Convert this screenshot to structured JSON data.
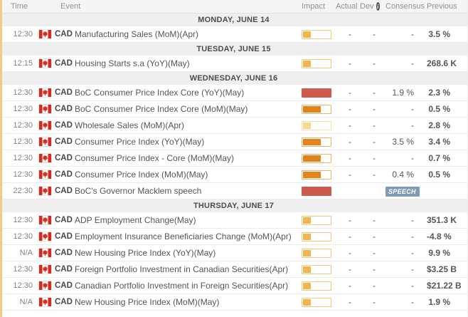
{
  "header": {
    "time": "Time",
    "event": "Event",
    "impact": "Impact",
    "actual": "Actual",
    "dev": "Dev",
    "dev_info_icon": "i",
    "consensus": "Consensus",
    "previous": "Previous"
  },
  "colors": {
    "accent_strip": "#f3cb7d",
    "header_bg": "#f5f5f6",
    "day_header_bg": "#efefef",
    "row_separator": "#ececec",
    "speech_badge_bg": "#7e9cb9",
    "flag_red": "#d52b1e",
    "time_text": "#808289",
    "event_text": "#54565b",
    "previous_text": "#43454a"
  },
  "impact_levels": {
    "low": {
      "fill": "#f2b54d",
      "border": "#f2c87e",
      "percent": 31
    },
    "low_light": {
      "fill": "#f7d88c",
      "border": "#f7e0a8",
      "percent": 31
    },
    "medium": {
      "fill": "#e2831b",
      "border": "#efb269",
      "percent": 64
    },
    "high": {
      "fill": "#cd5a4c",
      "border": "#cd5a4c",
      "percent": 100
    }
  },
  "groups": [
    {
      "day": "MONDAY, JUNE 14",
      "rows": [
        {
          "time": "12:30",
          "currency": "CAD",
          "event": "Manufacturing Sales (MoM)(Apr)",
          "impact": "low",
          "actual": "-",
          "dev": "-",
          "consensus": "-",
          "previous": "3.5 %"
        }
      ]
    },
    {
      "day": "TUESDAY, JUNE 15",
      "rows": [
        {
          "time": "12:15",
          "currency": "CAD",
          "event": "Housing Starts s.a (YoY)(May)",
          "impact": "low",
          "actual": "-",
          "dev": "-",
          "consensus": "-",
          "previous": "268.6 K"
        }
      ]
    },
    {
      "day": "WEDNESDAY, JUNE 16",
      "rows": [
        {
          "time": "12:30",
          "currency": "CAD",
          "event": "BoC Consumer Price Index Core (YoY)(May)",
          "impact": "high",
          "actual": "-",
          "dev": "-",
          "consensus": "1.9 %",
          "previous": "2.3 %"
        },
        {
          "time": "12:30",
          "currency": "CAD",
          "event": "BoC Consumer Price Index Core (MoM)(May)",
          "impact": "medium",
          "actual": "-",
          "dev": "-",
          "consensus": "-",
          "previous": "0.5 %"
        },
        {
          "time": "12:30",
          "currency": "CAD",
          "event": "Wholesale Sales (MoM)(Apr)",
          "impact": "low_light",
          "actual": "-",
          "dev": "-",
          "consensus": "-",
          "previous": "2.8 %"
        },
        {
          "time": "12:30",
          "currency": "CAD",
          "event": "Consumer Price Index (YoY)(May)",
          "impact": "medium",
          "actual": "-",
          "dev": "-",
          "consensus": "3.5 %",
          "previous": "3.4 %"
        },
        {
          "time": "12:30",
          "currency": "CAD",
          "event": "Consumer Price Index - Core (MoM)(May)",
          "impact": "medium",
          "actual": "-",
          "dev": "-",
          "consensus": "-",
          "previous": "0.7 %"
        },
        {
          "time": "12:30",
          "currency": "CAD",
          "event": "Consumer Price Index (MoM)(May)",
          "impact": "medium",
          "actual": "-",
          "dev": "-",
          "consensus": "0.4 %",
          "previous": "0.5 %"
        },
        {
          "time": "22:30",
          "currency": "CAD",
          "event": "BoC's Governor Macklem speech",
          "impact": "high",
          "actual": "",
          "dev": "",
          "consensus": "",
          "previous": "",
          "badge": "SPEECH"
        }
      ]
    },
    {
      "day": "THURSDAY, JUNE 17",
      "rows": [
        {
          "time": "12:30",
          "currency": "CAD",
          "event": "ADP Employment Change(May)",
          "impact": "low",
          "actual": "-",
          "dev": "-",
          "consensus": "-",
          "previous": "351.3 K"
        },
        {
          "time": "12:30",
          "currency": "CAD",
          "event": "Employment Insurance Beneficiaries Change (MoM)(Apr)",
          "impact": "low",
          "actual": "-",
          "dev": "-",
          "consensus": "-",
          "previous": "-4.8 %"
        },
        {
          "time": "N/A",
          "currency": "CAD",
          "event": "New Housing Price Index (YoY)(May)",
          "impact": "low",
          "actual": "-",
          "dev": "-",
          "consensus": "-",
          "previous": "9.9 %"
        },
        {
          "time": "12:30",
          "currency": "CAD",
          "event": "Foreign Portfolio Investment in Canadian Securities(Apr)",
          "impact": "low",
          "actual": "-",
          "dev": "-",
          "consensus": "-",
          "previous": "$3.25 B"
        },
        {
          "time": "12:30",
          "currency": "CAD",
          "event": "Canadian Portfolio Investment in Foreign Securities(Apr)",
          "impact": "low",
          "actual": "-",
          "dev": "-",
          "consensus": "-",
          "previous": "$21.22 B"
        },
        {
          "time": "N/A",
          "currency": "CAD",
          "event": "New Housing Price Index (MoM)(May)",
          "impact": "low",
          "actual": "-",
          "dev": "-",
          "consensus": "-",
          "previous": "1.9 %"
        }
      ]
    }
  ]
}
